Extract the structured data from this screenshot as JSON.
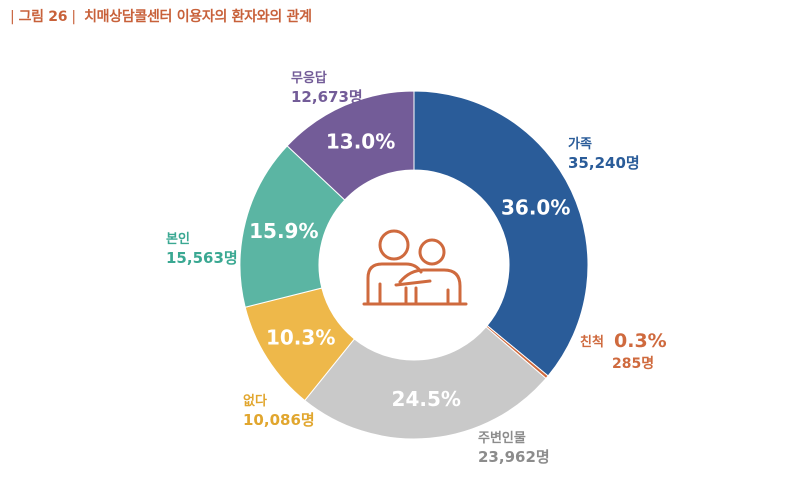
{
  "figure": {
    "number_label": "그림 26",
    "title": "치매상담콜센터 이용자의 환자와의 관계"
  },
  "chart_data": {
    "type": "pie",
    "variant": "donut",
    "title": "치매상담콜센터 이용자의 환자와의 관계",
    "slices": [
      {
        "name": "가족",
        "percent": 36.0,
        "percent_label": "36.0%",
        "count": 35240,
        "count_label": "35,240명",
        "color": "#2a5c99"
      },
      {
        "name": "친척",
        "percent": 0.3,
        "percent_label": "0.3%",
        "count": 285,
        "count_label": "285명",
        "color": "#cf6a3e"
      },
      {
        "name": "주변인물",
        "percent": 24.5,
        "percent_label": "24.5%",
        "count": 23962,
        "count_label": "23,962명",
        "color": "#c9c9c9"
      },
      {
        "name": "없다",
        "percent": 10.3,
        "percent_label": "10.3%",
        "count": 10086,
        "count_label": "10,086명",
        "color": "#eeb84a"
      },
      {
        "name": "본인",
        "percent": 15.9,
        "percent_label": "15.9%",
        "count": 15563,
        "count_label": "15,563명",
        "color": "#5bb5a3"
      },
      {
        "name": "무응답",
        "percent": 13.0,
        "percent_label": "13.0%",
        "count": 12673,
        "count_label": "12,673명",
        "color": "#735c98"
      }
    ],
    "center_icon": "two-people-embracing-icon",
    "icon_color": "#cf6a3e",
    "label_colors": {
      "가족": "#2a5c99",
      "친척": "#cf6a3e",
      "주변인물": "#8c8c8c",
      "없다": "#e1a62e",
      "본인": "#3aa892",
      "무응답": "#735c98"
    }
  }
}
